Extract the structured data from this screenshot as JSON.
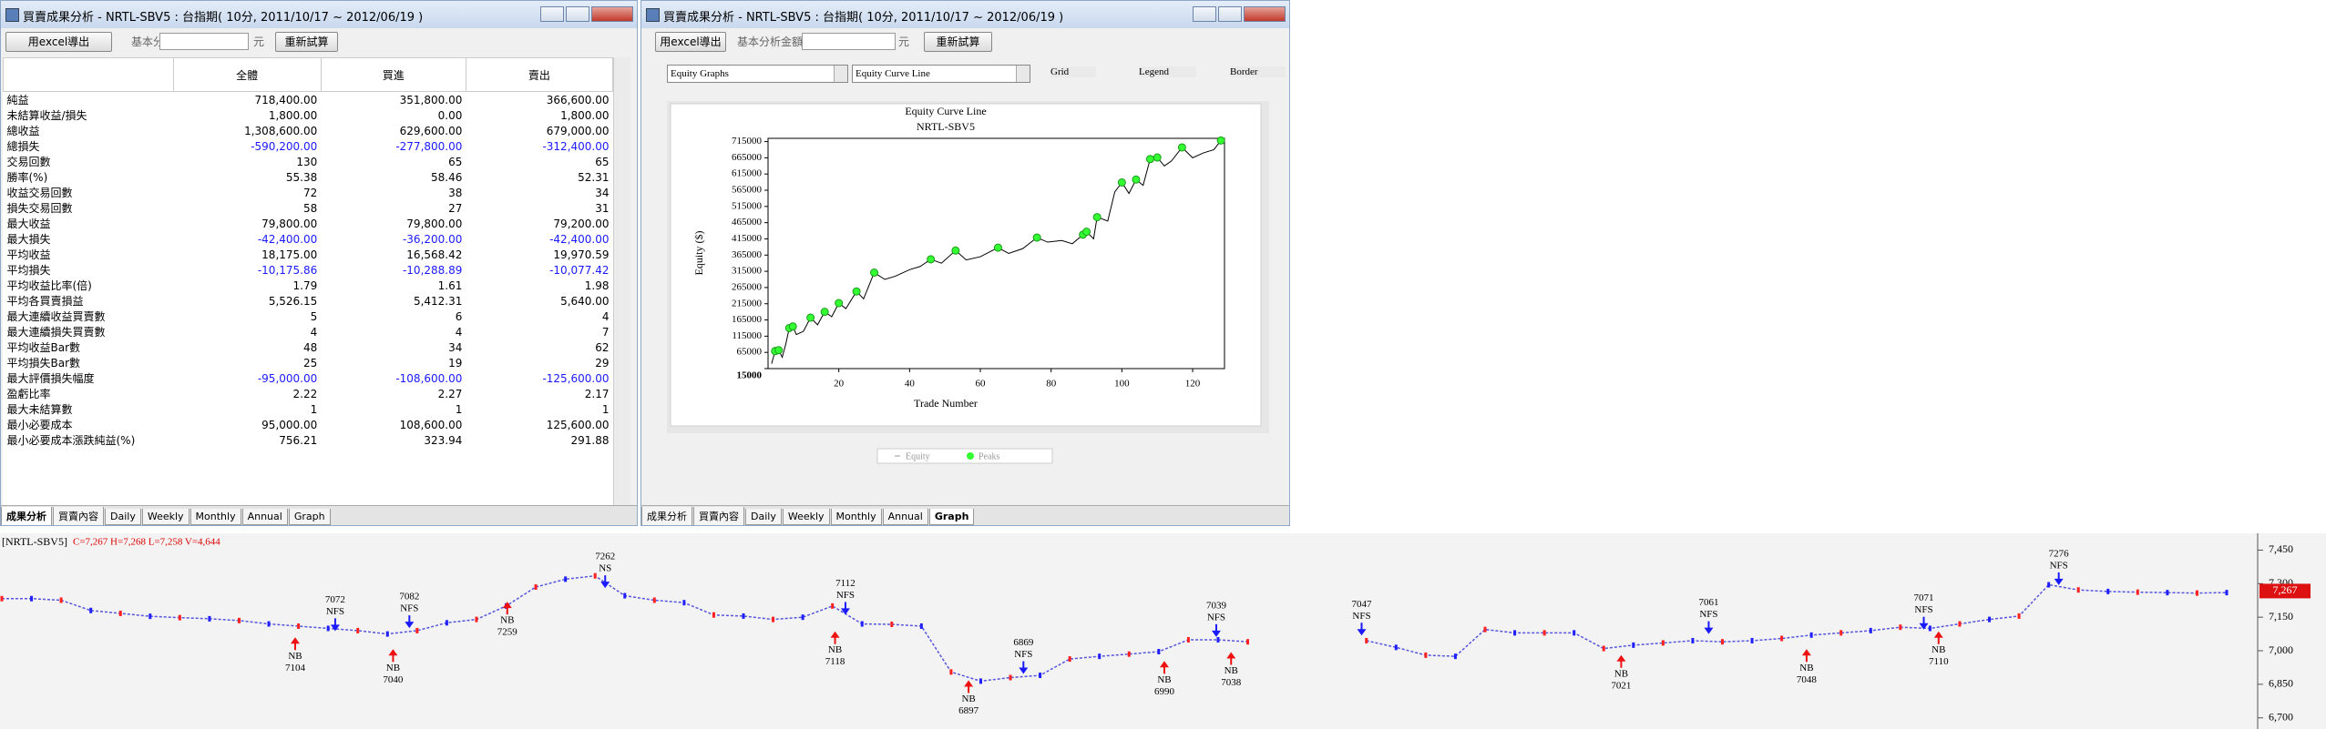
{
  "windows": [
    {
      "title": "買賣成果分析 - NRTL-SBV5 : 台指期( 10分, 2011/10/17 ~ 2012/06/19 )",
      "toolbar": {
        "export_button": "用excel導出",
        "amount_label": "基本分析金額",
        "unit": "元",
        "recalc_button": "重新試算"
      },
      "table": {
        "header": [
          "全體",
          "買進",
          "賣出"
        ],
        "rows": [
          [
            "純益",
            "718,400.00",
            "351,800.00",
            "366,600.00"
          ],
          [
            "未結算收益/損失",
            "1,800.00",
            "0.00",
            "1,800.00"
          ],
          [
            "總收益",
            "1,308,600.00",
            "629,600.00",
            "679,000.00"
          ],
          [
            "總損失",
            "-590,200.00",
            "-277,800.00",
            "-312,400.00"
          ],
          [
            "交易回數",
            "130",
            "65",
            "65"
          ],
          [
            "勝率(%)",
            "55.38",
            "58.46",
            "52.31"
          ],
          [
            "收益交易回數",
            "72",
            "38",
            "34"
          ],
          [
            "損失交易回數",
            "58",
            "27",
            "31"
          ],
          [
            "最大收益",
            "79,800.00",
            "79,800.00",
            "79,200.00"
          ],
          [
            "最大損失",
            "-42,400.00",
            "-36,200.00",
            "-42,400.00"
          ],
          [
            "平均收益",
            "18,175.00",
            "16,568.42",
            "19,970.59"
          ],
          [
            "平均損失",
            "-10,175.86",
            "-10,288.89",
            "-10,077.42"
          ],
          [
            "平均收益比率(倍)",
            "1.79",
            "1.61",
            "1.98"
          ],
          [
            "平均各買賣損益",
            "5,526.15",
            "5,412.31",
            "5,640.00"
          ],
          [
            "最大連續收益買賣數",
            "5",
            "6",
            "4"
          ],
          [
            "最大連續損失買賣數",
            "4",
            "4",
            "7"
          ],
          [
            "平均收益Bar數",
            "48",
            "34",
            "62"
          ],
          [
            "平均損失Bar數",
            "25",
            "19",
            "29"
          ],
          [
            "最大評價損失幅度",
            "-95,000.00",
            "-108,600.00",
            "-125,600.00"
          ],
          [
            "盈虧比率",
            "2.22",
            "2.27",
            "2.17"
          ],
          [
            "最大未結算數",
            "1",
            "1",
            "1"
          ],
          [
            "最小必要成本",
            "95,000.00",
            "108,600.00",
            "125,600.00"
          ],
          [
            "最小必要成本漲跌純益(%)",
            "756.21",
            "323.94",
            "291.88"
          ]
        ]
      },
      "tabs": [
        "成果分析",
        "買賣內容",
        "Daily",
        "Weekly",
        "Monthly",
        "Annual",
        "Graph"
      ],
      "active_tab": 0
    },
    {
      "title": "買賣成果分析 - NRTL-SBV5 : 台指期( 10分, 2011/10/17 ~ 2012/06/19 )",
      "toolbar": {
        "export_button": "用excel導出",
        "amount_label": "基本分析金額",
        "unit": "元",
        "recalc_button": "重新試算"
      },
      "graph_selector": "Equity Graphs",
      "graph_type": "Equity Curve Line",
      "options": [
        {
          "label": "Grid",
          "checked": true
        },
        {
          "label": "Legend",
          "checked": true
        },
        {
          "label": "Border",
          "checked": true
        }
      ],
      "tabs": [
        "成果分析",
        "買賣內容",
        "Daily",
        "Weekly",
        "Monthly",
        "Annual",
        "Graph"
      ],
      "active_tab": 6
    }
  ],
  "chart_data": [
    {
      "type": "line",
      "title": "Equity Curve Line",
      "subtitle": "NRTL-SBV5",
      "x_label": "Trade Number",
      "y_label": "Equity ($)",
      "xlim": [
        0,
        129
      ],
      "xticks": [
        20,
        40,
        60,
        80,
        100,
        120
      ],
      "ylim": [
        15000,
        725000
      ],
      "yticks": [
        15000,
        65000,
        115000,
        165000,
        215000,
        265000,
        315000,
        365000,
        415000,
        465000,
        515000,
        565000,
        615000,
        665000,
        715000
      ],
      "grid": false,
      "series": [
        {
          "name": "Equity",
          "color": "#000000",
          "x": [
            1,
            2,
            3,
            4,
            5,
            6,
            7,
            8,
            10,
            12,
            14,
            16,
            18,
            20,
            22,
            25,
            27,
            30,
            33,
            36,
            40,
            43,
            46,
            49,
            53,
            56,
            60,
            65,
            68,
            72,
            76,
            79,
            83,
            86,
            89,
            90,
            92,
            93,
            96,
            98,
            100,
            102,
            104,
            106,
            108,
            110,
            112,
            114,
            117,
            120,
            123,
            126,
            128
          ],
          "values": [
            30000,
            69000,
            72000,
            50000,
            90000,
            140000,
            145000,
            120000,
            130000,
            172000,
            150000,
            190000,
            175000,
            217000,
            200000,
            253000,
            230000,
            311000,
            290000,
            300000,
            320000,
            330000,
            352000,
            340000,
            379000,
            350000,
            360000,
            388000,
            370000,
            385000,
            419000,
            405000,
            410000,
            400000,
            428000,
            437000,
            415000,
            482000,
            470000,
            560000,
            589000,
            555000,
            598000,
            580000,
            661000,
            666000,
            640000,
            655000,
            697000,
            665000,
            680000,
            690000,
            718400
          ]
        },
        {
          "name": "Peaks",
          "color": "#33ff33",
          "type": "scatter",
          "x": [
            2,
            3,
            6,
            7,
            12,
            16,
            20,
            25,
            30,
            46,
            53,
            65,
            76,
            89,
            90,
            93,
            100,
            104,
            108,
            110,
            117,
            128
          ],
          "values": [
            69000,
            72000,
            140000,
            145000,
            172000,
            190000,
            217000,
            253000,
            311000,
            352000,
            379000,
            388000,
            419000,
            428000,
            437000,
            482000,
            589000,
            598000,
            661000,
            666000,
            697000,
            718400
          ]
        }
      ]
    },
    {
      "type": "line",
      "title": "[NRTL-SBV5]",
      "subtitle": "C=7,267 H=7,268 L=7,258 V=4,644",
      "ylim": [
        6650,
        7460
      ],
      "yticks": [
        {
          "value": 7450,
          "label": "7,450"
        },
        {
          "value": 7300,
          "label": "7,300"
        },
        {
          "value": 7150,
          "label": "7,150"
        },
        {
          "value": 7000,
          "label": "7,000"
        },
        {
          "value": 6850,
          "label": "6,850"
        },
        {
          "value": 6700,
          "label": "6,700"
        }
      ],
      "last_price": {
        "value": 7267,
        "label": "7,267"
      },
      "color": "#5555dd",
      "bar_colors": [
        "#ff2020",
        "#2020ff"
      ],
      "values": [
        7233,
        7233,
        7226,
        7180,
        7167,
        7154,
        7148,
        7143,
        7135,
        7120,
        7110,
        7100,
        7090,
        7075,
        7090,
        7125,
        7140,
        7200,
        7285,
        7320,
        7335,
        7246,
        7226,
        7215,
        7160,
        7155,
        7140,
        7150,
        7200,
        7120,
        7118,
        7110,
        6905,
        6864,
        6880,
        6890,
        6963,
        6975,
        6985,
        6996,
        7049,
        7049,
        7040,
        null,
        null,
        null,
        7045,
        7015,
        6980,
        6975,
        7095,
        7080,
        7080,
        7080,
        7010,
        7025,
        7035,
        7045,
        7040,
        7045,
        7055,
        7070,
        7080,
        7090,
        7105,
        7100,
        7120,
        7140,
        7155,
        7295,
        7272,
        7265,
        7262,
        7260,
        7258,
        7260
      ],
      "annotations": [
        {
          "signal": "NFS",
          "price": 7072
        },
        {
          "signal": "NB",
          "price": 7104
        },
        {
          "signal": "NFS",
          "price": 7082
        },
        {
          "signal": "NB",
          "price": 7040
        },
        {
          "signal": "NB",
          "price": 7259
        },
        {
          "signal": "NS",
          "price": 7262
        },
        {
          "signal": "NFS",
          "price": 7112
        },
        {
          "signal": "NB",
          "price": 7118
        },
        {
          "signal": "NFS",
          "price": 6869
        },
        {
          "signal": "NB",
          "price": 6897
        },
        {
          "signal": "NB",
          "price": 6990
        },
        {
          "signal": "NFS",
          "price": 7039
        },
        {
          "signal": "NB",
          "price": 7038
        },
        {
          "signal": "NFS",
          "price": 7047
        },
        {
          "signal": "NB",
          "price": 7021
        },
        {
          "signal": "NFS",
          "price": 7061
        },
        {
          "signal": "NB",
          "price": 7048
        },
        {
          "signal": "NFS",
          "price": 7071
        },
        {
          "signal": "NB",
          "price": 7110
        },
        {
          "signal": "NFS",
          "price": 7276
        }
      ]
    }
  ]
}
